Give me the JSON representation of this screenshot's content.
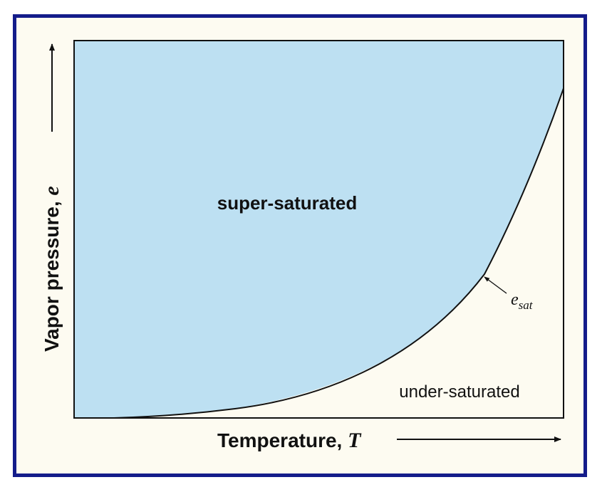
{
  "diagram": {
    "regions": {
      "above": "super-saturated",
      "below": "under-saturated"
    },
    "curve": {
      "label_symbol": "e",
      "label_subscript": "sat"
    },
    "x_axis": {
      "label": "Temperature, ",
      "symbol": "T"
    },
    "y_axis": {
      "label": "Vapor pressure, ",
      "symbol": "e"
    },
    "colors": {
      "border": "#141c8a",
      "background": "#fdfbf1",
      "super_saturated_fill": "#bde0f2",
      "lines": "#111111"
    }
  }
}
